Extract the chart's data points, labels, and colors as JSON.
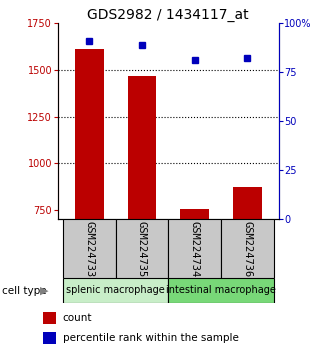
{
  "title": "GDS2982 / 1434117_at",
  "samples": [
    "GSM224733",
    "GSM224735",
    "GSM224734",
    "GSM224736"
  ],
  "counts": [
    1610,
    1465,
    755,
    875
  ],
  "percentiles": [
    91,
    89,
    81,
    82
  ],
  "ylim_left": [
    700,
    1750
  ],
  "ylim_right": [
    0,
    100
  ],
  "yticks_left": [
    750,
    1000,
    1250,
    1500,
    1750
  ],
  "yticks_right": [
    0,
    25,
    50,
    75,
    100
  ],
  "groups": [
    {
      "label": "splenic macrophage",
      "indices": [
        0,
        1
      ],
      "color": "#c8eec8"
    },
    {
      "label": "intestinal macrophage",
      "indices": [
        2,
        3
      ],
      "color": "#78d878"
    }
  ],
  "bar_color": "#bb0000",
  "dot_color": "#0000bb",
  "bar_width": 0.55,
  "cell_type_label": "cell type",
  "legend_count": "count",
  "legend_pct": "percentile rank within the sample",
  "title_fontsize": 10,
  "label_fontsize": 7.5,
  "tick_fontsize": 7,
  "group_fontsize": 7,
  "sample_box_color": "#c8c8c8"
}
